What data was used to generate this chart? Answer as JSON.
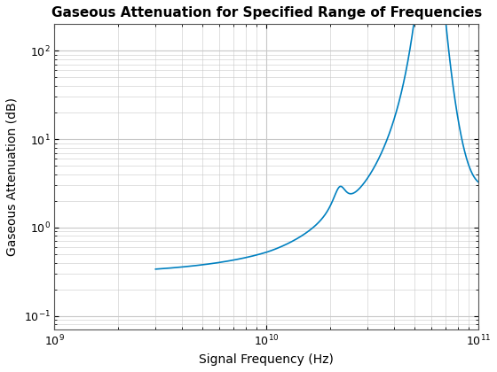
{
  "title": "Gaseous Attenuation for Specified Range of Frequencies",
  "xlabel": "Signal Frequency (Hz)",
  "ylabel": "Gaseous Attenuation (dB)",
  "line_color": "#0080C0",
  "line_width": 1.2,
  "xlim": [
    3000000000.0,
    100000000000.0
  ],
  "ylim": [
    0.07,
    200
  ],
  "background_color": "#ffffff",
  "grid_color": "#c8c8c8",
  "title_fontsize": 11,
  "label_fontsize": 10
}
